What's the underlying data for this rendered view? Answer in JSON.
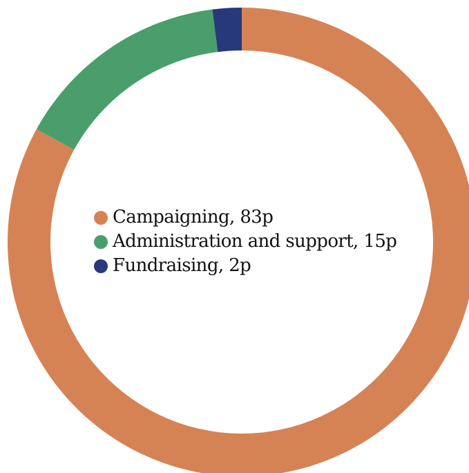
{
  "chart_data": {
    "type": "pie",
    "style": "donut",
    "categories": [
      "Campaigning",
      "Administration and support",
      "Fundraising"
    ],
    "values": [
      83,
      15,
      2
    ],
    "colors": [
      "#d58355",
      "#4a9e6c",
      "#27397b"
    ],
    "legend": [
      {
        "label": "Campaigning, 83p",
        "color": "#d58355"
      },
      {
        "label": "Administration and support, 15p",
        "color": "#4a9e6c"
      },
      {
        "label": "Fundraising, 2p",
        "color": "#27397b"
      }
    ],
    "legend_placement": "center"
  }
}
